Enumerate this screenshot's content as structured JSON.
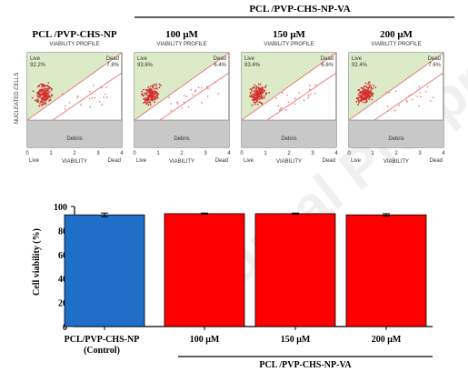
{
  "figure": {
    "group_header": "PCL /PVP-CHS-NP-VA",
    "watermark": "Journal Pre-proof",
    "panels": [
      {
        "title": "PCL /PVP-CHS-NP",
        "subtitle": "VIABILITY PROFILE",
        "live_label": "Live",
        "live_pct": "92.2%",
        "dead_label": "Dead",
        "dead_pct": "7.8%",
        "debris_label": "Debris",
        "xlabel": "VIABILITY",
        "x_left": "Live",
        "x_right": "Dead"
      },
      {
        "title": "100 μM",
        "subtitle": "VIABILITY PROFILE",
        "live_label": "Live",
        "live_pct": "93.6%",
        "dead_label": "Dead",
        "dead_pct": "6.4%",
        "debris_label": "Debris",
        "xlabel": "VIABILITY",
        "x_left": "Live",
        "x_right": "Dead"
      },
      {
        "title": "150 μM",
        "subtitle": "VIABILITY PROFILE",
        "live_label": "Live",
        "live_pct": "93.4%",
        "dead_label": "Dead",
        "dead_pct": "6.6%",
        "debris_label": "Debris",
        "xlabel": "VIABILITY",
        "x_left": "Live",
        "x_right": "Dead"
      },
      {
        "title": "200 μM",
        "subtitle": "VIABILITY PROFILE",
        "live_label": "Live",
        "live_pct": "92.4%",
        "dead_label": "Dead",
        "dead_pct": "7.6%",
        "debris_label": "Debris",
        "xlabel": "VIABILITY",
        "x_left": "Live",
        "x_right": "Dead"
      }
    ],
    "panel_ylabel": "NUCLEATED CELLS",
    "panel_ticks": [
      "0",
      "1",
      "2",
      "3",
      "4"
    ]
  },
  "chart_data": {
    "type": "bar",
    "categories": [
      "PCL/PVP-CHS-NP",
      "100 μM",
      "150 μM",
      "200 μM"
    ],
    "category_sublabel": "(Control)",
    "values": [
      93,
      94,
      94,
      93
    ],
    "errors": [
      1.5,
      0.5,
      0.5,
      1.0
    ],
    "colors": [
      "#1f6fc8",
      "#ff0000",
      "#ff0000",
      "#ff0000"
    ],
    "ylabel": "Cell viability (%)",
    "group_label": "PCL /PVP-CHS-NP-VA",
    "ylim": [
      0,
      100
    ],
    "yticks": [
      "0",
      "20",
      "40",
      "60",
      "80",
      "100"
    ],
    "grid": false
  }
}
